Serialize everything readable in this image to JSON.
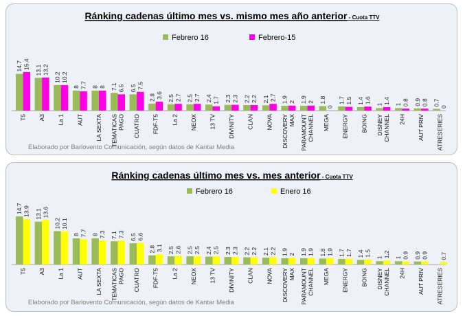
{
  "chart_data": [
    {
      "type": "bar",
      "title": "Ránking cadenas último mes vs. mismo mes año anterior",
      "subtitle": " - Cuota TTV",
      "footer": "Elaborado por Barlovento Comunicación, según datos de Kantar Media",
      "categories": [
        "T5",
        "A3",
        "La 1",
        "AUT",
        "LA SEXTA",
        "TEMATICAS\nPAGO",
        "CUATRO",
        "FDF-T5",
        "La 2",
        "NEOX",
        "13 TV",
        "DIVINITY",
        "CLAN",
        "NOVA",
        "DISCOVERY\nMAX",
        "PARAMOUNT\nCHANNEL",
        "MEGA",
        "ENERGY",
        "BOING",
        "DISNEY\nCHANNEL",
        "24H",
        "AUT PRIV",
        "ATRESERIES"
      ],
      "series": [
        {
          "name": "Febrero 16",
          "color": "#9bbb59",
          "values": [
            14.7,
            13.1,
            10.2,
            8,
            8,
            7.1,
            6.5,
            2.8,
            2.5,
            2.5,
            2.4,
            2.3,
            2.2,
            2.1,
            1.9,
            1.9,
            1.8,
            1.7,
            1.4,
            1,
            1,
            0.9,
            0.7
          ]
        },
        {
          "name": "Febrero-15",
          "color": "#ff00e6",
          "values": [
            15.4,
            13.2,
            10.2,
            7.7,
            8,
            6.5,
            7.5,
            3.6,
            2.7,
            2.7,
            1.7,
            2.3,
            2.2,
            2.7,
            2,
            2,
            0,
            1.5,
            1.6,
            1.4,
            0.8,
            0.8,
            0
          ]
        }
      ],
      "legend": "top-center",
      "grid": false
    },
    {
      "type": "bar",
      "title": "Ránking cadenas último mes vs. mes anterior",
      "subtitle": " - Cuota TTV",
      "footer": "Elaborado por Barlovento Comunicación, según datos de Kantar Media",
      "categories": [
        "T5",
        "A3",
        "La 1",
        "AUT",
        "LA SEXTA",
        "TEMATICAS\nPAGO",
        "CUATRO",
        "FDF-T5",
        "La 2",
        "NEOX",
        "13 TV",
        "DIVINITY",
        "CLAN",
        "NOVA",
        "DISCOVERY\nMAX",
        "PARAMOUNT\nCHANNEL",
        "MEGA",
        "ENERGY",
        "BOING",
        "DISNEY\nCHANNEL",
        "24H",
        "AUT PRIV",
        "ATRESERIES"
      ],
      "series": [
        {
          "name": "Febrero 16",
          "color": "#9bbb59",
          "values": [
            14.7,
            13.1,
            10.2,
            8,
            8,
            7.1,
            6.5,
            2.8,
            2.5,
            2.5,
            2.4,
            2.3,
            2.2,
            2.1,
            1.9,
            1.9,
            1.8,
            1.7,
            1.4,
            1,
            1,
            0.9,
            null
          ]
        },
        {
          "name": "Enero 16",
          "color": "#ffff00",
          "values": [
            13.9,
            13.6,
            10.1,
            7.7,
            7.3,
            7.3,
            6.6,
            3.1,
            2.6,
            2.5,
            2.5,
            2.3,
            2.2,
            2.2,
            2,
            1.9,
            1.9,
            1.7,
            1.5,
            1.2,
            0.9,
            0.9,
            0.7
          ]
        }
      ],
      "legend": "top-center",
      "grid": false
    }
  ]
}
